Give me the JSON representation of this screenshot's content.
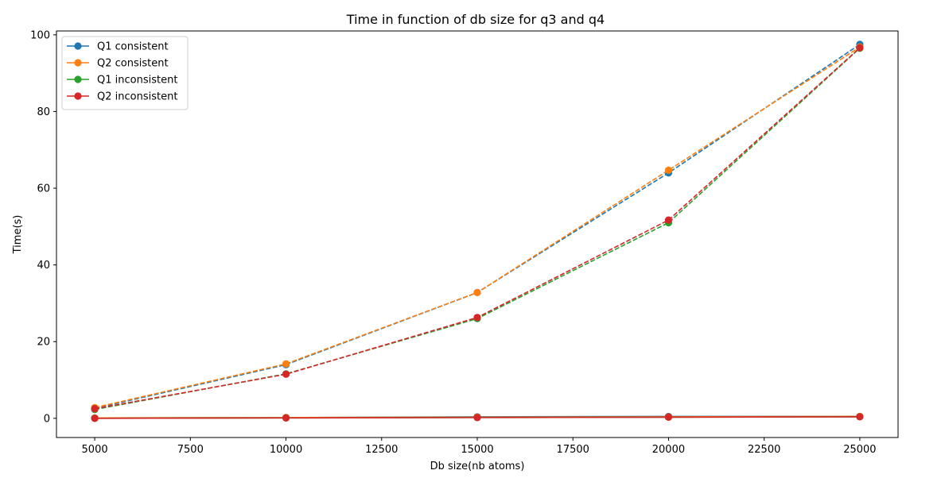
{
  "chart_data": {
    "type": "line",
    "title": "Time in function of db size for q3 and q4",
    "xlabel": "Db size(nb atoms)",
    "ylabel": "Time(s)",
    "xlim": [
      4000,
      26000
    ],
    "ylim": [
      -5,
      101
    ],
    "x_ticks": [
      5000,
      7500,
      10000,
      12500,
      15000,
      17500,
      20000,
      22500,
      25000
    ],
    "y_ticks": [
      0,
      20,
      40,
      60,
      80,
      100
    ],
    "grid": false,
    "legend_position": "top-left",
    "x": [
      5000,
      10000,
      15000,
      20000,
      25000
    ],
    "series": [
      {
        "name": "Q1 consistent",
        "color": "#1f77b4",
        "style": "solid",
        "values": [
          0.1,
          0.2,
          0.4,
          0.5,
          0.5
        ]
      },
      {
        "name": "Q2 consistent",
        "color": "#ff7f0e",
        "style": "solid",
        "values": [
          0.1,
          0.2,
          0.3,
          0.4,
          0.5
        ]
      },
      {
        "name": "Q1 inconsistent",
        "color": "#2ca02c",
        "style": "solid",
        "values": [
          0.0,
          0.1,
          0.2,
          0.3,
          0.4
        ]
      },
      {
        "name": "Q2 inconsistent",
        "color": "#d62728",
        "style": "solid",
        "values": [
          0.0,
          0.1,
          0.2,
          0.3,
          0.4
        ]
      },
      {
        "name": "",
        "color": "#1f77b4",
        "style": "dashed",
        "values": [
          2.6,
          14.0,
          32.8,
          64.0,
          97.5
        ]
      },
      {
        "name": "",
        "color": "#ff7f0e",
        "style": "dashed",
        "values": [
          2.8,
          14.2,
          32.8,
          64.7,
          96.8
        ]
      },
      {
        "name": "",
        "color": "#2ca02c",
        "style": "dashed",
        "values": [
          2.3,
          11.6,
          26.0,
          51.0,
          96.5
        ]
      },
      {
        "name": "",
        "color": "#d62728",
        "style": "dashed",
        "values": [
          2.5,
          11.5,
          26.3,
          51.7,
          96.6
        ]
      }
    ]
  }
}
